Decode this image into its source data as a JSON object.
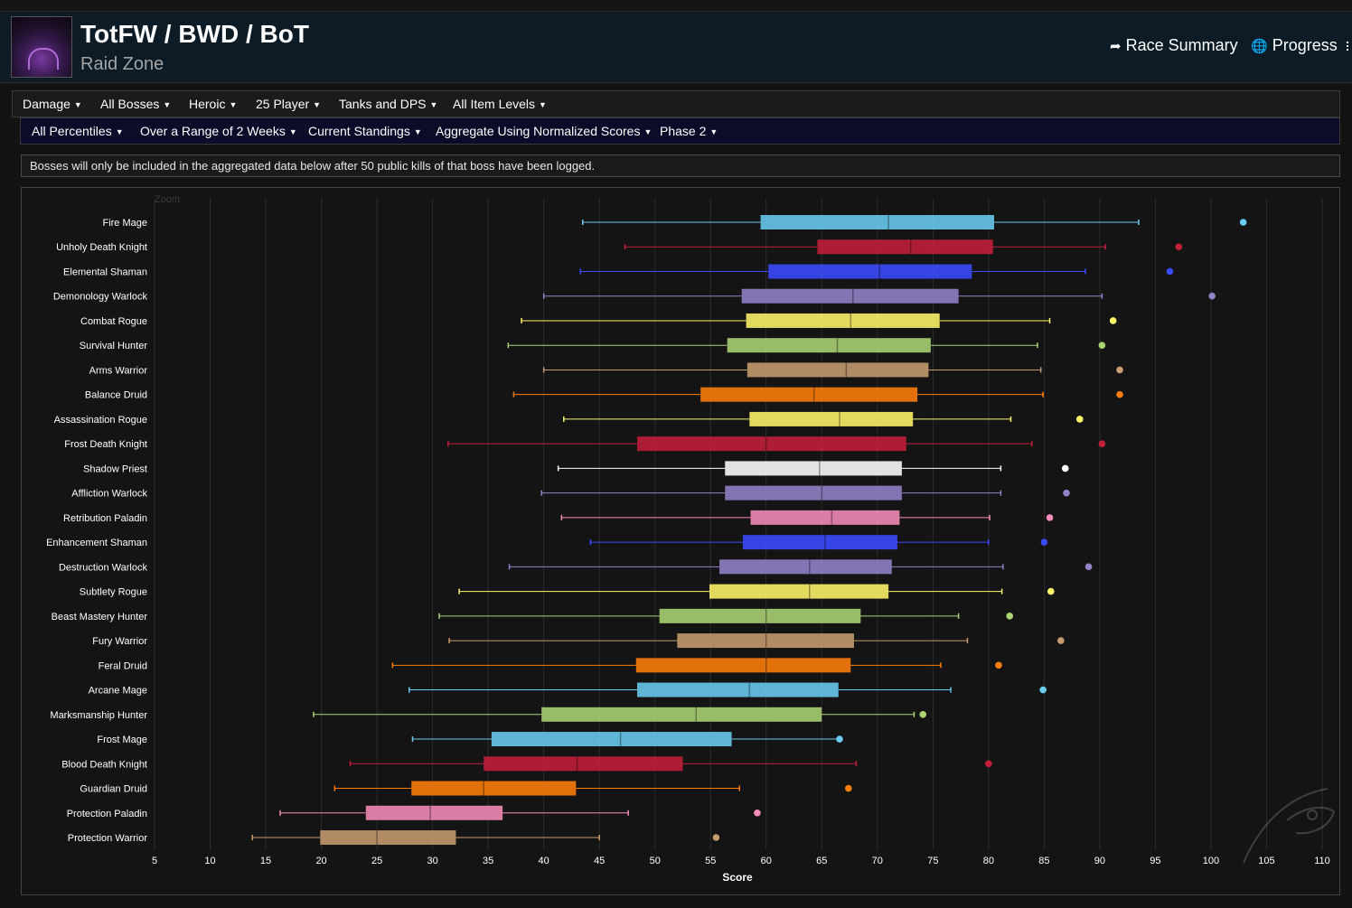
{
  "header": {
    "title": "TotFW / BWD / BoT",
    "subtitle": "Raid Zone",
    "race_summary": "Race Summary",
    "progress": "Progress"
  },
  "filters_row1": [
    {
      "label": "Damage"
    },
    {
      "label": "All Bosses"
    },
    {
      "label": "Heroic"
    },
    {
      "label": "25 Player"
    },
    {
      "label": "Tanks and DPS"
    },
    {
      "label": "All Item Levels"
    }
  ],
  "filters_row2": [
    {
      "label": "All Percentiles"
    },
    {
      "label": "Over a Range of 2 Weeks"
    },
    {
      "label": "Current Standings"
    },
    {
      "label": "Aggregate Using Normalized Scores"
    },
    {
      "label": "Phase 2"
    }
  ],
  "notice": "Bosses will only be included in the aggregated data below after 50 public kills of that boss have been logged.",
  "chart_data": {
    "type": "boxplot",
    "orientation": "horizontal",
    "zoom_label": "Zoom",
    "xlabel": "Score",
    "xlim": [
      5,
      110
    ],
    "xticks": [
      5,
      10,
      15,
      20,
      25,
      30,
      35,
      40,
      45,
      50,
      55,
      60,
      65,
      70,
      75,
      80,
      85,
      90,
      95,
      100,
      105,
      110
    ],
    "grid": true,
    "series": [
      {
        "name": "Fire Mage",
        "color": "#69ccf0",
        "min": 43.5,
        "q1": 59.5,
        "median": 71.0,
        "q3": 80.5,
        "max": 93.5,
        "outlier": 102.9
      },
      {
        "name": "Unholy Death Knight",
        "color": "#c41f3b",
        "min": 47.3,
        "q1": 64.6,
        "median": 73.0,
        "q3": 80.4,
        "max": 90.5,
        "outlier": 97.1
      },
      {
        "name": "Elemental Shaman",
        "color": "#3a4bff",
        "min": 43.3,
        "q1": 60.2,
        "median": 70.2,
        "q3": 78.5,
        "max": 88.7,
        "outlier": 96.3
      },
      {
        "name": "Demonology Warlock",
        "color": "#9482c9",
        "min": 40.0,
        "q1": 57.8,
        "median": 67.8,
        "q3": 77.3,
        "max": 90.2,
        "outlier": 100.1
      },
      {
        "name": "Combat Rogue",
        "color": "#fff569",
        "min": 38.0,
        "q1": 58.2,
        "median": 67.6,
        "q3": 75.6,
        "max": 85.5,
        "outlier": 91.2
      },
      {
        "name": "Survival Hunter",
        "color": "#abd473",
        "min": 36.8,
        "q1": 56.5,
        "median": 66.4,
        "q3": 74.8,
        "max": 84.4,
        "outlier": 90.2
      },
      {
        "name": "Arms Warrior",
        "color": "#c79c6e",
        "min": 40.0,
        "q1": 58.3,
        "median": 67.2,
        "q3": 74.6,
        "max": 84.7,
        "outlier": 91.8
      },
      {
        "name": "Balance Druid",
        "color": "#ff7d0a",
        "min": 37.3,
        "q1": 54.1,
        "median": 64.3,
        "q3": 73.6,
        "max": 84.9,
        "outlier": 91.8
      },
      {
        "name": "Assassination Rogue",
        "color": "#fff569",
        "min": 41.8,
        "q1": 58.5,
        "median": 66.6,
        "q3": 73.2,
        "max": 82.0,
        "outlier": 88.2
      },
      {
        "name": "Frost Death Knight",
        "color": "#c41f3b",
        "min": 31.4,
        "q1": 48.4,
        "median": 60.0,
        "q3": 72.6,
        "max": 83.9,
        "outlier": 90.2
      },
      {
        "name": "Shadow Priest",
        "color": "#ffffff",
        "min": 41.3,
        "q1": 56.3,
        "median": 64.8,
        "q3": 72.2,
        "max": 81.1,
        "outlier": 86.9
      },
      {
        "name": "Affliction Warlock",
        "color": "#9482c9",
        "min": 39.8,
        "q1": 56.3,
        "median": 65.0,
        "q3": 72.2,
        "max": 81.1,
        "outlier": 87.0
      },
      {
        "name": "Retribution Paladin",
        "color": "#f58cba",
        "min": 41.6,
        "q1": 58.6,
        "median": 65.9,
        "q3": 72.0,
        "max": 80.1,
        "outlier": 85.5
      },
      {
        "name": "Enhancement Shaman",
        "color": "#3a4bff",
        "min": 44.2,
        "q1": 57.9,
        "median": 65.3,
        "q3": 71.8,
        "max": 80.0,
        "outlier": 85.0
      },
      {
        "name": "Destruction Warlock",
        "color": "#9482c9",
        "min": 36.9,
        "q1": 55.8,
        "median": 63.9,
        "q3": 71.3,
        "max": 81.3,
        "outlier": 89.0
      },
      {
        "name": "Subtlety Rogue",
        "color": "#fff569",
        "min": 32.4,
        "q1": 54.9,
        "median": 63.9,
        "q3": 71.0,
        "max": 81.2,
        "outlier": 85.6
      },
      {
        "name": "Beast Mastery Hunter",
        "color": "#abd473",
        "min": 30.6,
        "q1": 50.4,
        "median": 60.0,
        "q3": 68.5,
        "max": 77.3,
        "outlier": 81.9
      },
      {
        "name": "Fury Warrior",
        "color": "#c79c6e",
        "min": 31.5,
        "q1": 52.0,
        "median": 60.0,
        "q3": 67.9,
        "max": 78.1,
        "outlier": 86.5
      },
      {
        "name": "Feral Druid",
        "color": "#ff7d0a",
        "min": 26.4,
        "q1": 48.3,
        "median": 60.0,
        "q3": 67.6,
        "max": 75.7,
        "outlier": 80.9
      },
      {
        "name": "Arcane Mage",
        "color": "#69ccf0",
        "min": 27.9,
        "q1": 48.4,
        "median": 58.5,
        "q3": 66.5,
        "max": 76.6,
        "outlier": 84.9
      },
      {
        "name": "Marksmanship Hunter",
        "color": "#abd473",
        "min": 19.3,
        "q1": 39.8,
        "median": 53.7,
        "q3": 65.0,
        "max": 73.3,
        "outlier": 74.1
      },
      {
        "name": "Frost Mage",
        "color": "#69ccf0",
        "min": 28.2,
        "q1": 35.3,
        "median": 46.9,
        "q3": 56.9,
        "max": 66.6,
        "outlier": 66.6
      },
      {
        "name": "Blood Death Knight",
        "color": "#c41f3b",
        "min": 22.6,
        "q1": 34.6,
        "median": 43.0,
        "q3": 52.5,
        "max": 68.1,
        "outlier": 80.0
      },
      {
        "name": "Guardian Druid",
        "color": "#ff7d0a",
        "min": 21.2,
        "q1": 28.1,
        "median": 34.6,
        "q3": 42.9,
        "max": 57.6,
        "outlier": 67.4
      },
      {
        "name": "Protection Paladin",
        "color": "#f58cba",
        "min": 16.3,
        "q1": 24.0,
        "median": 29.8,
        "q3": 36.3,
        "max": 47.6,
        "outlier": 59.2
      },
      {
        "name": "Protection Warrior",
        "color": "#c79c6e",
        "min": 13.8,
        "q1": 19.9,
        "median": 25.0,
        "q3": 32.1,
        "max": 45.0,
        "outlier": 55.5
      }
    ]
  }
}
